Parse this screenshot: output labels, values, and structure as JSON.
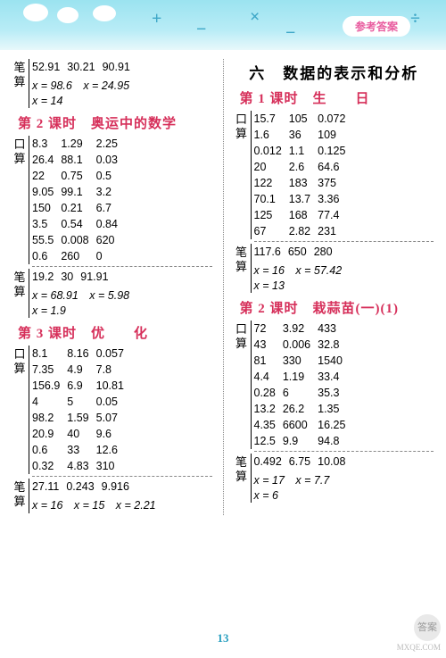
{
  "header": {
    "badge": "参考答案"
  },
  "page_number": "13",
  "watermark": {
    "circle": "答案",
    "site": "MXQE.COM"
  },
  "colors": {
    "header_bg_top": "#9be3f0",
    "header_bg_bottom": "#e8f8fb",
    "badge_text": "#e85a9e",
    "heading_red": "#d62f5a",
    "pagenum": "#2aa0c0",
    "divider": "#888888"
  },
  "typography": {
    "body_font": "SimSun / Microsoft YaHei",
    "num_font": "Arial",
    "base_fontsize": 12.5,
    "heading_red_fontsize": 15,
    "heading_big_fontsize": 17
  },
  "labels": {
    "kousuan": "口算",
    "bisuan": "笔算"
  },
  "left": {
    "top_block": {
      "rows": [
        [
          "52.91",
          "30.21",
          "90.91"
        ]
      ],
      "eq": [
        "x = 98.6　x = 24.95",
        "x = 14"
      ]
    },
    "lesson2": {
      "title": "第 2 课时　奥运中的数学",
      "kou_rows": [
        [
          "8.3",
          "1.29",
          "2.25"
        ],
        [
          "26.4",
          "88.1",
          "0.03"
        ],
        [
          "22",
          "0.75",
          "0.5"
        ],
        [
          "9.05",
          "99.1",
          "3.2"
        ],
        [
          "150",
          "0.21",
          "6.7"
        ],
        [
          "3.5",
          "0.54",
          "0.84"
        ],
        [
          "55.5",
          "0.008",
          "620"
        ],
        [
          "0.6",
          "260",
          "0"
        ]
      ],
      "bi_rows": [
        [
          "19.2",
          "30",
          "91.91"
        ]
      ],
      "bi_eq": [
        "x = 68.91　x = 5.98",
        "x = 1.9"
      ]
    },
    "lesson3": {
      "title": "第 3 课时　优　　化",
      "kou_rows": [
        [
          "8.1",
          "8.16",
          "0.057"
        ],
        [
          "7.35",
          "4.9",
          "7.8"
        ],
        [
          "156.9",
          "6.9",
          "10.81"
        ],
        [
          "4",
          "5",
          "0.05"
        ],
        [
          "98.2",
          "1.59",
          "5.07"
        ],
        [
          "20.9",
          "40",
          "9.6"
        ],
        [
          "0.6",
          "33",
          "12.6"
        ],
        [
          "0.32",
          "4.83",
          "310"
        ]
      ],
      "bi_rows": [
        [
          "27.11",
          "0.243",
          "9.916"
        ]
      ],
      "bi_eq": [
        "x = 16　x = 15　x = 2.21"
      ]
    }
  },
  "right": {
    "unit_title": "六　数据的表示和分析",
    "lesson1": {
      "title": "第 1 课时　生　　日",
      "kou_rows": [
        [
          "15.7",
          "105",
          "0.072"
        ],
        [
          "1.6",
          "36",
          "109"
        ],
        [
          "0.012",
          "1.1",
          "0.125"
        ],
        [
          "20",
          "2.6",
          "64.6"
        ],
        [
          "122",
          "183",
          "375"
        ],
        [
          "70.1",
          "13.7",
          "3.36"
        ],
        [
          "125",
          "168",
          "77.4"
        ],
        [
          "67",
          "2.82",
          "231"
        ]
      ],
      "bi_rows": [
        [
          "117.6",
          "650",
          "280"
        ]
      ],
      "bi_eq": [
        "x = 16　x = 57.42",
        "x = 13"
      ]
    },
    "lesson2": {
      "title": "第 2 课时　栽蒜苗(一)(1)",
      "kou_rows": [
        [
          "72",
          "3.92",
          "433"
        ],
        [
          "43",
          "0.006",
          "32.8"
        ],
        [
          "81",
          "330",
          "1540"
        ],
        [
          "4.4",
          "1.19",
          "33.4"
        ],
        [
          "0.28",
          "6",
          "35.3"
        ],
        [
          "13.2",
          "26.2",
          "1.35"
        ],
        [
          "4.35",
          "6600",
          "16.25"
        ],
        [
          "12.5",
          "9.9",
          "94.8"
        ]
      ],
      "bi_rows": [
        [
          "0.492",
          "6.75",
          "10.08"
        ]
      ],
      "bi_eq": [
        "x = 17　x = 7.7",
        "x = 6"
      ]
    }
  }
}
